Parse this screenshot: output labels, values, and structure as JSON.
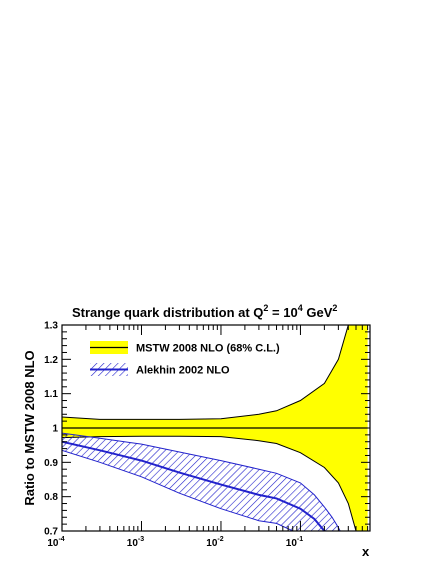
{
  "chart_data": {
    "type": "line",
    "title_main": "Strange quark distribution at Q",
    "title_sup1": "2",
    "title_mid": " = 10",
    "title_sup2": "4",
    "title_unit": " GeV",
    "title_sup3": "2",
    "xlabel": "x",
    "ylabel": "Ratio to MSTW 2008 NLO",
    "x_scale": "log",
    "xlim": [
      0.0001,
      0.75
    ],
    "ylim": [
      0.7,
      1.3
    ],
    "y_ticks": [
      "0.7",
      "0.8",
      "0.9",
      "1",
      "1.1",
      "1.2",
      "1.3"
    ],
    "x_ticks": [
      {
        "base": "10",
        "exp": "-4"
      },
      {
        "base": "10",
        "exp": "-3"
      },
      {
        "base": "10",
        "exp": "-2"
      },
      {
        "base": "10",
        "exp": "-1"
      }
    ],
    "legend_position": "top-left",
    "series": [
      {
        "name": "MSTW 2008 NLO (68% C.L.)",
        "style": "band",
        "color": "#ffff00",
        "line_color": "#000000",
        "x": [
          0.0001,
          0.0003,
          0.001,
          0.003,
          0.01,
          0.03,
          0.05,
          0.1,
          0.2,
          0.3,
          0.4,
          0.5,
          0.7
        ],
        "central": [
          1.0,
          1.0,
          1.0,
          1.0,
          1.0,
          1.0,
          1.0,
          1.0,
          1.0,
          1.0,
          1.0,
          1.0,
          1.0
        ],
        "upper": [
          1.032,
          1.025,
          1.025,
          1.025,
          1.027,
          1.04,
          1.05,
          1.08,
          1.13,
          1.2,
          1.3,
          1.45,
          1.7
        ],
        "lower": [
          0.972,
          0.975,
          0.976,
          0.976,
          0.975,
          0.963,
          0.955,
          0.928,
          0.885,
          0.84,
          0.78,
          0.7,
          0.7
        ]
      },
      {
        "name": "Alekhin 2002 NLO",
        "style": "hatched-band",
        "color": "#2222cc",
        "x": [
          0.0001,
          0.0003,
          0.001,
          0.003,
          0.01,
          0.03,
          0.05,
          0.1,
          0.15,
          0.2,
          0.25,
          0.3,
          0.35
        ],
        "central": [
          0.96,
          0.935,
          0.905,
          0.87,
          0.835,
          0.805,
          0.795,
          0.765,
          0.735,
          0.7,
          0.67,
          0.65,
          0.62
        ],
        "upper": [
          0.985,
          0.97,
          0.953,
          0.93,
          0.905,
          0.88,
          0.868,
          0.84,
          0.805,
          0.77,
          0.74,
          0.71,
          0.68
        ],
        "lower": [
          0.935,
          0.9,
          0.858,
          0.81,
          0.765,
          0.73,
          0.722,
          0.69,
          0.665,
          0.63,
          0.6,
          0.59,
          0.57
        ]
      }
    ]
  }
}
